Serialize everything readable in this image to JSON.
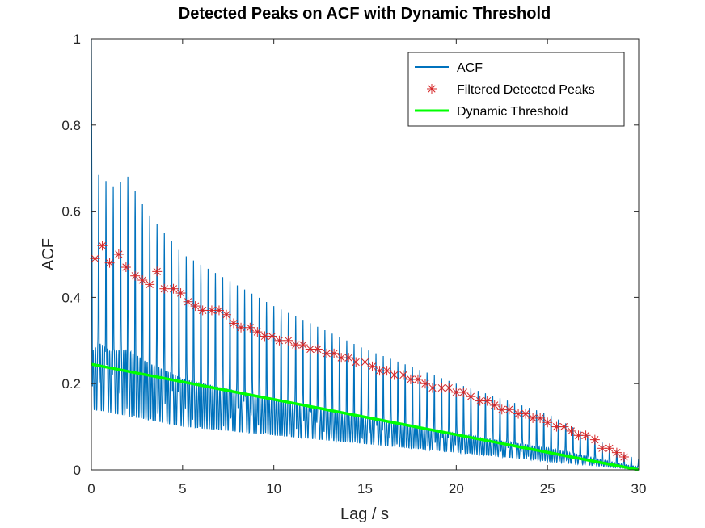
{
  "chart_data": {
    "type": "line",
    "title": "Detected Peaks on ACF with Dynamic Threshold",
    "xlabel": "Lag / s",
    "ylabel": "ACF",
    "xlim": [
      0,
      30
    ],
    "ylim": [
      0,
      1
    ],
    "x_ticks": [
      "0",
      "5",
      "10",
      "15",
      "20",
      "25",
      "30"
    ],
    "y_ticks": [
      "0",
      "0.2",
      "0.4",
      "0.6",
      "0.8",
      "1"
    ],
    "grid": false,
    "legend_position": "top-right",
    "colors": {
      "acf": "#0072BD",
      "peaks": "#D62728",
      "threshold": "#00FF00"
    },
    "series": [
      {
        "name": "ACF",
        "style": "line",
        "description_values": {
          "start_value": 1.0,
          "peak_period_s": 0.4,
          "peak_envelope_x": [
            0.0,
            0.5,
            1.0,
            2.0,
            3.0,
            5.0,
            10.0,
            15.0,
            20.0,
            25.0,
            29.5
          ],
          "peak_envelope_y": [
            0.62,
            0.7,
            0.65,
            0.68,
            0.6,
            0.5,
            0.38,
            0.28,
            0.2,
            0.13,
            0.03
          ],
          "trough_envelope_x": [
            0.0,
            5.0,
            10.0,
            15.0,
            20.0,
            25.0,
            30.0
          ],
          "trough_envelope_y": [
            0.14,
            0.1,
            0.08,
            0.06,
            0.04,
            0.02,
            0.0
          ]
        }
      },
      {
        "name": "Filtered Detected Peaks",
        "style": "marker-asterisk",
        "x": [
          0.2,
          0.6,
          1.0,
          1.5,
          1.9,
          2.4,
          2.8,
          3.2,
          3.6,
          4.0,
          4.5,
          4.9,
          5.3,
          5.7,
          6.1,
          6.6,
          7.0,
          7.4,
          7.8,
          8.2,
          8.7,
          9.1,
          9.5,
          9.9,
          10.3,
          10.8,
          11.2,
          11.6,
          12.0,
          12.4,
          12.9,
          13.3,
          13.7,
          14.1,
          14.5,
          15.0,
          15.4,
          15.8,
          16.2,
          16.6,
          17.1,
          17.5,
          17.9,
          18.3,
          18.7,
          19.2,
          19.6,
          20.0,
          20.4,
          20.8,
          21.3,
          21.7,
          22.1,
          22.5,
          22.9,
          23.4,
          23.8,
          24.2,
          24.6,
          25.0,
          25.5,
          25.9,
          26.3,
          26.7,
          27.1,
          27.6,
          28.0,
          28.4,
          28.8,
          29.2
        ],
        "y": [
          0.49,
          0.52,
          0.48,
          0.5,
          0.47,
          0.45,
          0.44,
          0.43,
          0.46,
          0.42,
          0.42,
          0.41,
          0.39,
          0.38,
          0.37,
          0.37,
          0.37,
          0.36,
          0.34,
          0.33,
          0.33,
          0.32,
          0.31,
          0.31,
          0.3,
          0.3,
          0.29,
          0.29,
          0.28,
          0.28,
          0.27,
          0.27,
          0.26,
          0.26,
          0.25,
          0.25,
          0.24,
          0.23,
          0.23,
          0.22,
          0.22,
          0.21,
          0.21,
          0.2,
          0.19,
          0.19,
          0.19,
          0.18,
          0.18,
          0.17,
          0.16,
          0.16,
          0.15,
          0.14,
          0.14,
          0.13,
          0.13,
          0.12,
          0.12,
          0.11,
          0.1,
          0.1,
          0.09,
          0.08,
          0.08,
          0.07,
          0.05,
          0.05,
          0.04,
          0.03
        ]
      },
      {
        "name": "Dynamic Threshold",
        "style": "line-thick",
        "x": [
          0,
          30
        ],
        "y": [
          0.245,
          0.0
        ]
      }
    ]
  }
}
